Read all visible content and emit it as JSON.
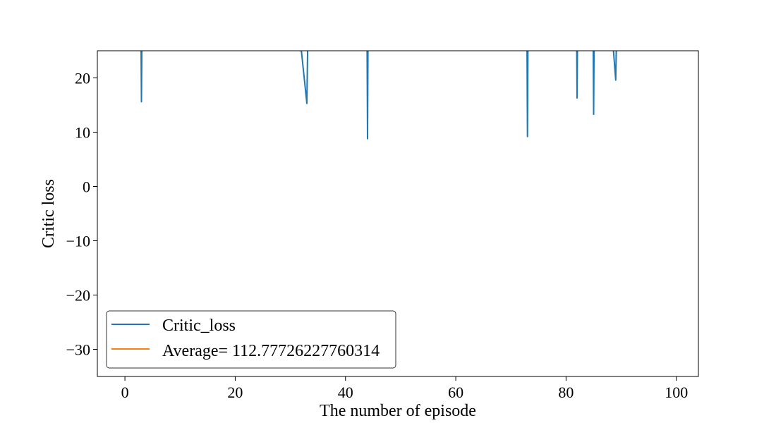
{
  "chart_data": {
    "type": "line",
    "title": "",
    "xlabel": "The number of episode",
    "ylabel": "Critic loss",
    "xlim": [
      -5,
      104
    ],
    "ylim": [
      -35,
      25
    ],
    "xticks": [
      0,
      20,
      40,
      60,
      80,
      100
    ],
    "yticks": [
      20,
      10,
      0,
      -10,
      -20,
      -30
    ],
    "ytick_labels": [
      "20",
      "10",
      "0",
      "−10",
      "−20",
      "−30"
    ],
    "grid": false,
    "legend_position": "lower-left",
    "series": [
      {
        "name": "Critic_loss",
        "color": "#1f77b4",
        "points": [
          [
            2.9,
            30
          ],
          [
            3,
            15.6
          ],
          [
            3.1,
            30
          ],
          [
            32,
            25
          ],
          [
            33,
            15.3
          ],
          [
            33.2,
            30
          ],
          [
            43.9,
            30
          ],
          [
            44,
            8.8
          ],
          [
            44.1,
            30
          ],
          [
            72.9,
            30
          ],
          [
            73,
            9.2
          ],
          [
            73.1,
            30
          ],
          [
            81.9,
            30
          ],
          [
            82,
            16.3
          ],
          [
            82.1,
            30
          ],
          [
            84.9,
            30
          ],
          [
            85,
            13.3
          ],
          [
            85.1,
            30
          ],
          [
            88.6,
            25
          ],
          [
            89,
            19.6
          ],
          [
            89.2,
            30
          ]
        ]
      },
      {
        "name": "Average= 112.77726227760314",
        "color": "#ff7f0e",
        "value": 112.77726227760314
      }
    ]
  }
}
